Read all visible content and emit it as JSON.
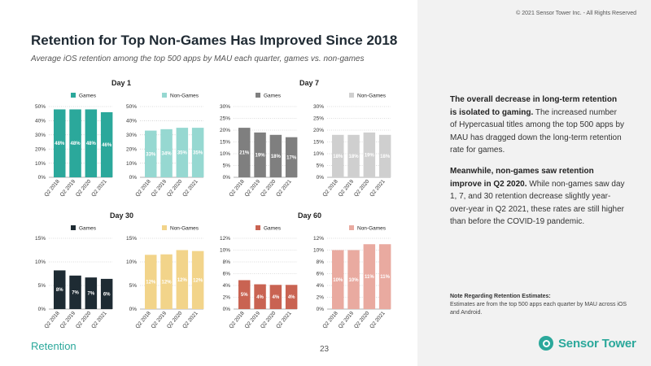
{
  "copyright": "© 2021 Sensor Tower Inc. - All Rights Reserved",
  "title": "Retention for Top Non-Games Has Improved Since 2018",
  "subtitle": "Average iOS retention among the top 500 apps by MAU each quarter, games vs. non-games",
  "group_titles": {
    "day1": "Day 1",
    "day7": "Day 7",
    "day30": "Day 30",
    "day60": "Day 60"
  },
  "sidebar": {
    "p1_bold": "The overall decrease in long-term retention is isolated to gaming.",
    "p1_rest": " The increased number of Hypercasual titles among the top 500 apps by MAU has dragged down the long-term retention rate for games.",
    "p2_bold": "Meanwhile, non-games saw retention improve in Q2 2020.",
    "p2_rest": " While non-games saw day 1, 7, and 30 retention decrease slightly year-over-year in Q2 2021, these rates are still higher than before the COVID-19 pandemic.",
    "note_title": "Note Regarding Retention Estimates:",
    "note_text": "Estimates are from the top 500 apps each quarter by MAU across iOS and Android."
  },
  "footer": {
    "section": "Retention",
    "page": "23",
    "brand": "Sensor Tower"
  },
  "chart_data": [
    {
      "type": "bar",
      "legend": "Games",
      "color": "#2ba89b",
      "categories": [
        "Q2 2018",
        "Q2 2019",
        "Q2 2020",
        "Q2 2021"
      ],
      "values": [
        48,
        48,
        48,
        46
      ],
      "labels": [
        "48%",
        "48%",
        "48%",
        "46%"
      ],
      "ylim": [
        0,
        50
      ],
      "ticks": [
        "0%",
        "10%",
        "20%",
        "30%",
        "40%",
        "50%"
      ],
      "tick_values": [
        0,
        10,
        20,
        30,
        40,
        50
      ]
    },
    {
      "type": "bar",
      "legend": "Non-Games",
      "color": "#96d8d1",
      "categories": [
        "Q2 2018",
        "Q2 2019",
        "Q2 2020",
        "Q2 2021"
      ],
      "values": [
        33,
        34,
        35,
        35
      ],
      "labels": [
        "33%",
        "34%",
        "35%",
        "35%"
      ],
      "ylim": [
        0,
        50
      ],
      "ticks": [
        "0%",
        "10%",
        "20%",
        "30%",
        "40%",
        "50%"
      ],
      "tick_values": [
        0,
        10,
        20,
        30,
        40,
        50
      ]
    },
    {
      "type": "bar",
      "legend": "Games",
      "color": "#7f7f7f",
      "categories": [
        "Q2 2018",
        "Q2 2019",
        "Q2 2020",
        "Q2 2021"
      ],
      "values": [
        21,
        19,
        18,
        17
      ],
      "labels": [
        "21%",
        "19%",
        "18%",
        "17%"
      ],
      "ylim": [
        0,
        30
      ],
      "ticks": [
        "0%",
        "5%",
        "10%",
        "15%",
        "20%",
        "25%",
        "30%"
      ],
      "tick_values": [
        0,
        5,
        10,
        15,
        20,
        25,
        30
      ]
    },
    {
      "type": "bar",
      "legend": "Non-Games",
      "color": "#cfcfcf",
      "categories": [
        "Q2 2018",
        "Q2 2019",
        "Q2 2020",
        "Q2 2021"
      ],
      "values": [
        18,
        18,
        19,
        18
      ],
      "labels": [
        "18%",
        "18%",
        "19%",
        "18%"
      ],
      "ylim": [
        0,
        30
      ],
      "ticks": [
        "0%",
        "5%",
        "10%",
        "15%",
        "20%",
        "25%",
        "30%"
      ],
      "tick_values": [
        0,
        5,
        10,
        15,
        20,
        25,
        30
      ]
    },
    {
      "type": "bar",
      "legend": "Games",
      "color": "#1e2b33",
      "categories": [
        "Q2 2018",
        "Q2 2019",
        "Q2 2020",
        "Q2 2021"
      ],
      "values": [
        8.2,
        7.1,
        6.7,
        6.4
      ],
      "labels": [
        "8%",
        "7%",
        "7%",
        "6%"
      ],
      "ylim": [
        0,
        15
      ],
      "ticks": [
        "0%",
        "5%",
        "10%",
        "15%"
      ],
      "tick_values": [
        0,
        5,
        10,
        15
      ]
    },
    {
      "type": "bar",
      "legend": "Non-Games",
      "color": "#f2d48a",
      "categories": [
        "Q2 2018",
        "Q2 2019",
        "Q2 2020",
        "Q2 2021"
      ],
      "values": [
        11.5,
        11.6,
        12.5,
        12.3
      ],
      "labels": [
        "12%",
        "12%",
        "12%",
        "12%"
      ],
      "ylim": [
        0,
        15
      ],
      "ticks": [
        "0%",
        "5%",
        "10%",
        "15%"
      ],
      "tick_values": [
        0,
        5,
        10,
        15
      ]
    },
    {
      "type": "bar",
      "legend": "Games",
      "color": "#c96352",
      "categories": [
        "Q2 2018",
        "Q2 2019",
        "Q2 2020",
        "Q2 2021"
      ],
      "values": [
        4.9,
        4.2,
        4.1,
        4.1
      ],
      "labels": [
        "5%",
        "4%",
        "4%",
        "4%"
      ],
      "ylim": [
        0,
        12
      ],
      "ticks": [
        "0%",
        "2%",
        "4%",
        "6%",
        "8%",
        "10%",
        "12%"
      ],
      "tick_values": [
        0,
        2,
        4,
        6,
        8,
        10,
        12
      ]
    },
    {
      "type": "bar",
      "legend": "Non-Games",
      "color": "#e9aaa0",
      "categories": [
        "Q2 2018",
        "Q2 2019",
        "Q2 2020",
        "Q2 2021"
      ],
      "values": [
        10,
        10,
        11,
        11
      ],
      "labels": [
        "10%",
        "10%",
        "11%",
        "11%"
      ],
      "ylim": [
        0,
        12
      ],
      "ticks": [
        "0%",
        "2%",
        "4%",
        "6%",
        "8%",
        "10%",
        "12%"
      ],
      "tick_values": [
        0,
        2,
        4,
        6,
        8,
        10,
        12
      ]
    }
  ]
}
